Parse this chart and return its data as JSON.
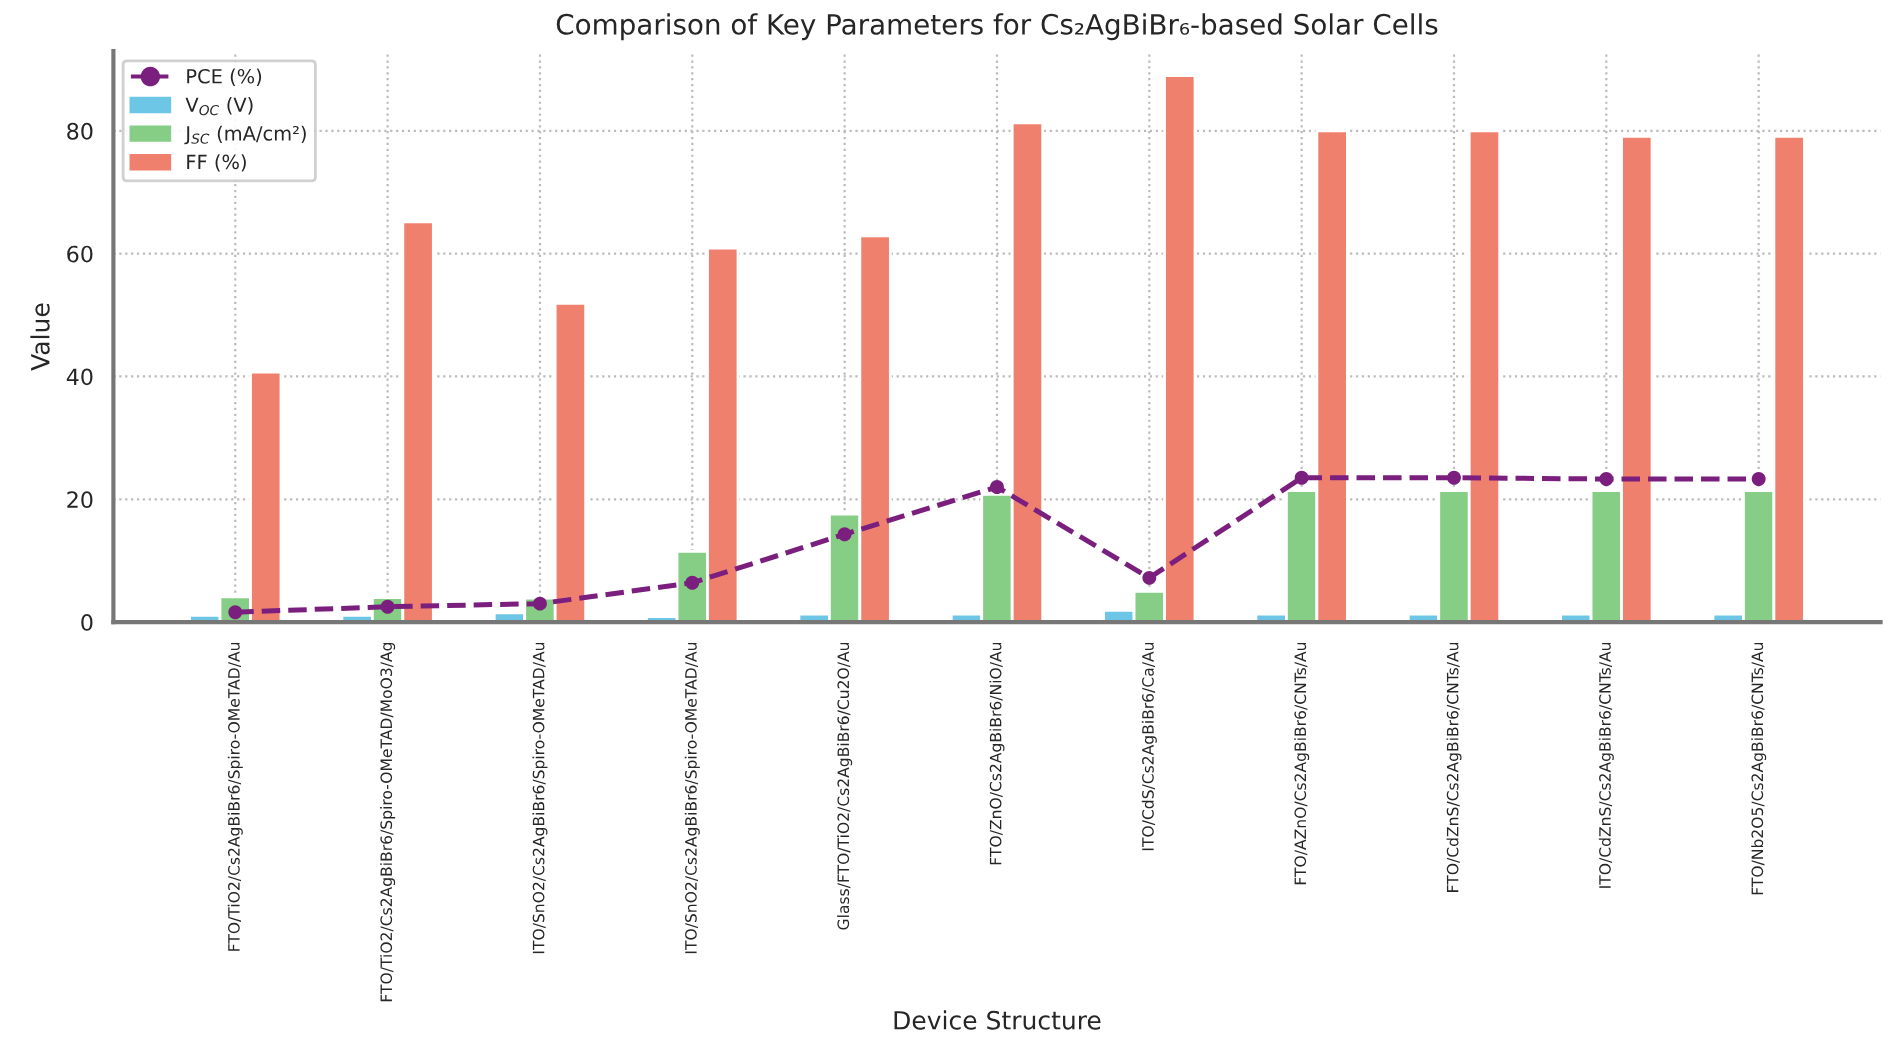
{
  "chart_data": {
    "type": "bar",
    "title": "Comparison of Key Parameters for Cs₂AgBiBr₆-based Solar Cells",
    "xlabel": "Device Structure",
    "ylabel": "Value",
    "categories": [
      "FTO/TiO2/Cs2AgBiBr6/Spiro-OMeTAD/Au",
      "FTO/TiO2/Cs2AgBiBr6/Spiro-OMeTAD/MoO3/Ag",
      "ITO/SnO2/Cs2AgBiBr6/Spiro-OMeTAD/Au",
      "ITO/SnO2/Cs2AgBiBr6/Spiro-OMeTAD/Au",
      "Glass/FTO/TiO2/Cs2AgBiBr6/Cu2O/Au",
      "FTO/ZnO/Cs2AgBiBr6/NiO/Au",
      "ITO/CdS/Cs2AgBiBr6/Ca/Au",
      "FTO/AZnO/Cs2AgBiBr6/CNTs/Au",
      "FTO/CdZnS/Cs2AgBiBr6/CNTs/Au",
      "ITO/CdZnS/Cs2AgBiBr6/CNTs/Au",
      "FTO/Nb2O5/Cs2AgBiBr6/CNTs/Au"
    ],
    "series": [
      {
        "name": "PCE (%)",
        "type": "line",
        "color": "#7b1f7f",
        "marker": "circle",
        "line_style": "dashed",
        "values": [
          1.6,
          2.5,
          3.0,
          6.4,
          14.3,
          22.0,
          7.2,
          23.5,
          23.5,
          23.3,
          23.3
        ]
      },
      {
        "name": "V$_{OC}$ (V)",
        "color": "#6ec6e6",
        "values": [
          1.1,
          1.1,
          1.5,
          0.9,
          1.3,
          1.3,
          1.9,
          1.3,
          1.3,
          1.3,
          1.3
        ]
      },
      {
        "name": "J$_{SC}$ (mA/cm²)",
        "color": "#86cd86",
        "values": [
          4.1,
          4.0,
          3.9,
          11.5,
          17.6,
          20.8,
          5.0,
          21.4,
          21.4,
          21.4,
          21.4
        ]
      },
      {
        "name": "FF (%)",
        "color": "#f0806e",
        "values": [
          40.7,
          65.2,
          51.9,
          60.9,
          62.9,
          81.3,
          89.0,
          80.0,
          80.0,
          79.1,
          79.1
        ]
      }
    ],
    "ylim": [
      0,
      93
    ],
    "yticks": [
      0,
      20,
      40,
      60,
      80
    ],
    "grid": true,
    "legend": "top left"
  }
}
